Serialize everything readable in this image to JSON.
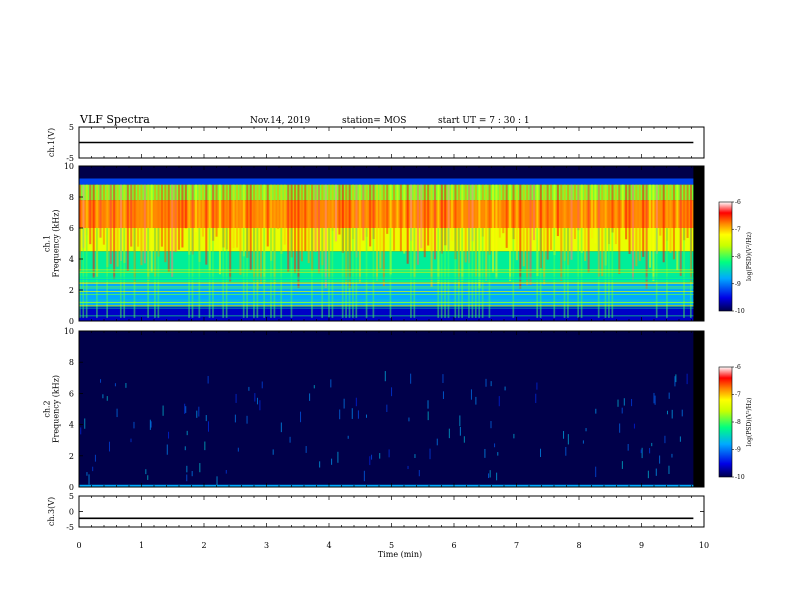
{
  "header": {
    "title": "VLF Spectra",
    "date": "Nov.14, 2019",
    "station": "station= MOS",
    "start_ut": "start  UT  =  7 : 30 : 1"
  },
  "colors": {
    "background": "#ffffff",
    "spectrogram_bg": "#000000",
    "trace": "#000000",
    "colormap": [
      "#00004a",
      "#0000e6",
      "#00aaff",
      "#00ff80",
      "#c8ff00",
      "#ffff00",
      "#ff8800",
      "#ff0000",
      "#ffffff"
    ]
  },
  "chart_data": [
    {
      "type": "line",
      "name": "ch1-waveform",
      "ylabel": "ch.1(V)",
      "ylim": [
        -5,
        5
      ],
      "yticks": [
        "5",
        "-5"
      ],
      "x": [
        0,
        9.83
      ],
      "y": [
        0,
        0
      ]
    },
    {
      "type": "heatmap",
      "name": "ch1-spectrogram",
      "ylabel": "ch.1\nFrequency (kHz)",
      "ylim": [
        0,
        10
      ],
      "yticks": [
        "0",
        "2",
        "4",
        "6",
        "8",
        "10"
      ],
      "xlim": [
        0,
        10
      ],
      "data_end_min": 9.83,
      "colorbar": {
        "label": "log(PSD)(V²/Hz)",
        "range": [
          -10,
          -6
        ],
        "ticks": [
          "-6",
          "-7",
          "-8",
          "-9",
          "-10"
        ]
      },
      "bands": [
        {
          "from_khz": 0,
          "to_khz": 1.0,
          "level": -9.6
        },
        {
          "from_khz": 1.0,
          "to_khz": 2.5,
          "level": -9.0
        },
        {
          "from_khz": 2.5,
          "to_khz": 4.5,
          "level": -8.6
        },
        {
          "from_khz": 4.5,
          "to_khz": 6.0,
          "level": -7.7
        },
        {
          "from_khz": 6.0,
          "to_khz": 7.8,
          "level": -7.0
        },
        {
          "from_khz": 7.8,
          "to_khz": 8.8,
          "level": -8.2
        },
        {
          "from_khz": 8.8,
          "to_khz": 9.2,
          "level": -9.3
        },
        {
          "from_khz": 9.2,
          "to_khz": 10,
          "level": -10
        }
      ]
    },
    {
      "type": "heatmap",
      "name": "ch2-spectrogram",
      "ylabel": "ch.2\nFrequency (kHz)",
      "ylim": [
        0,
        10
      ],
      "yticks": [
        "0",
        "2",
        "4",
        "6",
        "8",
        "10"
      ],
      "xlim": [
        0,
        10
      ],
      "data_end_min": 9.83,
      "colorbar": {
        "label": "log(PSD)(V²/Hz)",
        "range": [
          -10,
          -6
        ],
        "ticks": [
          "-6",
          "-7",
          "-8",
          "-9",
          "-10"
        ]
      },
      "bands": [
        {
          "from_khz": 0,
          "to_khz": 0.15,
          "level": -9.0
        },
        {
          "from_khz": 0.15,
          "to_khz": 10,
          "level": -10
        }
      ]
    },
    {
      "type": "line",
      "name": "ch3-waveform",
      "ylabel": "ch.3(V)",
      "ylim": [
        -5,
        5
      ],
      "yticks": [
        "5",
        "0",
        "-5"
      ],
      "x": [
        0,
        9.83
      ],
      "y": [
        -2.2,
        -2.2
      ]
    }
  ],
  "xaxis": {
    "label": "Time (min)",
    "xlim": [
      0,
      10
    ],
    "ticks": [
      "0",
      "1",
      "2",
      "3",
      "4",
      "5",
      "6",
      "7",
      "8",
      "9",
      "10"
    ]
  }
}
